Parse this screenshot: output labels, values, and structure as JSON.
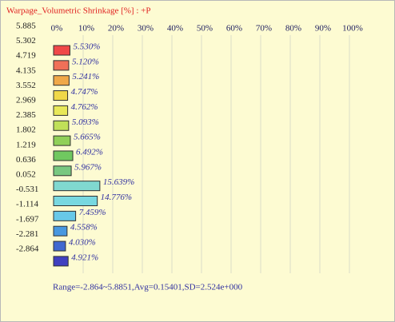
{
  "chart_data": {
    "type": "histogram",
    "title": "Warpage_Volumetric Shrinkage [%] : +P",
    "bins": [
      5.885,
      5.302,
      4.719,
      4.135,
      3.552,
      2.969,
      2.385,
      1.802,
      1.219,
      0.636,
      0.052,
      -0.531,
      -1.114,
      -1.697,
      -2.281,
      -2.864
    ],
    "values": [
      5.53,
      5.12,
      5.241,
      4.747,
      4.762,
      5.093,
      5.665,
      6.492,
      5.967,
      15.639,
      14.776,
      7.459,
      4.558,
      4.03,
      4.921
    ],
    "value_labels": [
      "5.530%",
      "5.120%",
      "5.241%",
      "4.747%",
      "4.762%",
      "5.093%",
      "5.665%",
      "6.492%",
      "5.967%",
      "15.639%",
      "14.776%",
      "7.459%",
      "4.558%",
      "4.030%",
      "4.921%"
    ],
    "colors": [
      "#f04848",
      "#f07058",
      "#f0a848",
      "#f0d848",
      "#e8e858",
      "#c0e058",
      "#90d058",
      "#70c860",
      "#78c880",
      "#80d8d0",
      "#78d8e0",
      "#68c8e8",
      "#4898e0",
      "#4068d0",
      "#4040c0"
    ],
    "xlim": [
      0,
      100
    ],
    "xticks": [
      {
        "value": 0,
        "label": "0%"
      },
      {
        "value": 10,
        "label": "10%"
      },
      {
        "value": 20,
        "label": "20%"
      },
      {
        "value": 30,
        "label": "30%"
      },
      {
        "value": 40,
        "label": "40%"
      },
      {
        "value": 50,
        "label": "50%"
      },
      {
        "value": 60,
        "label": "60%"
      },
      {
        "value": 70,
        "label": "70%"
      },
      {
        "value": 80,
        "label": "80%"
      },
      {
        "value": 90,
        "label": "90%"
      },
      {
        "value": 100,
        "label": "100%"
      }
    ],
    "grid": true,
    "footer": "Range=-2.864~5.8851,Avg=0.15401,SD=2.524e+000"
  }
}
